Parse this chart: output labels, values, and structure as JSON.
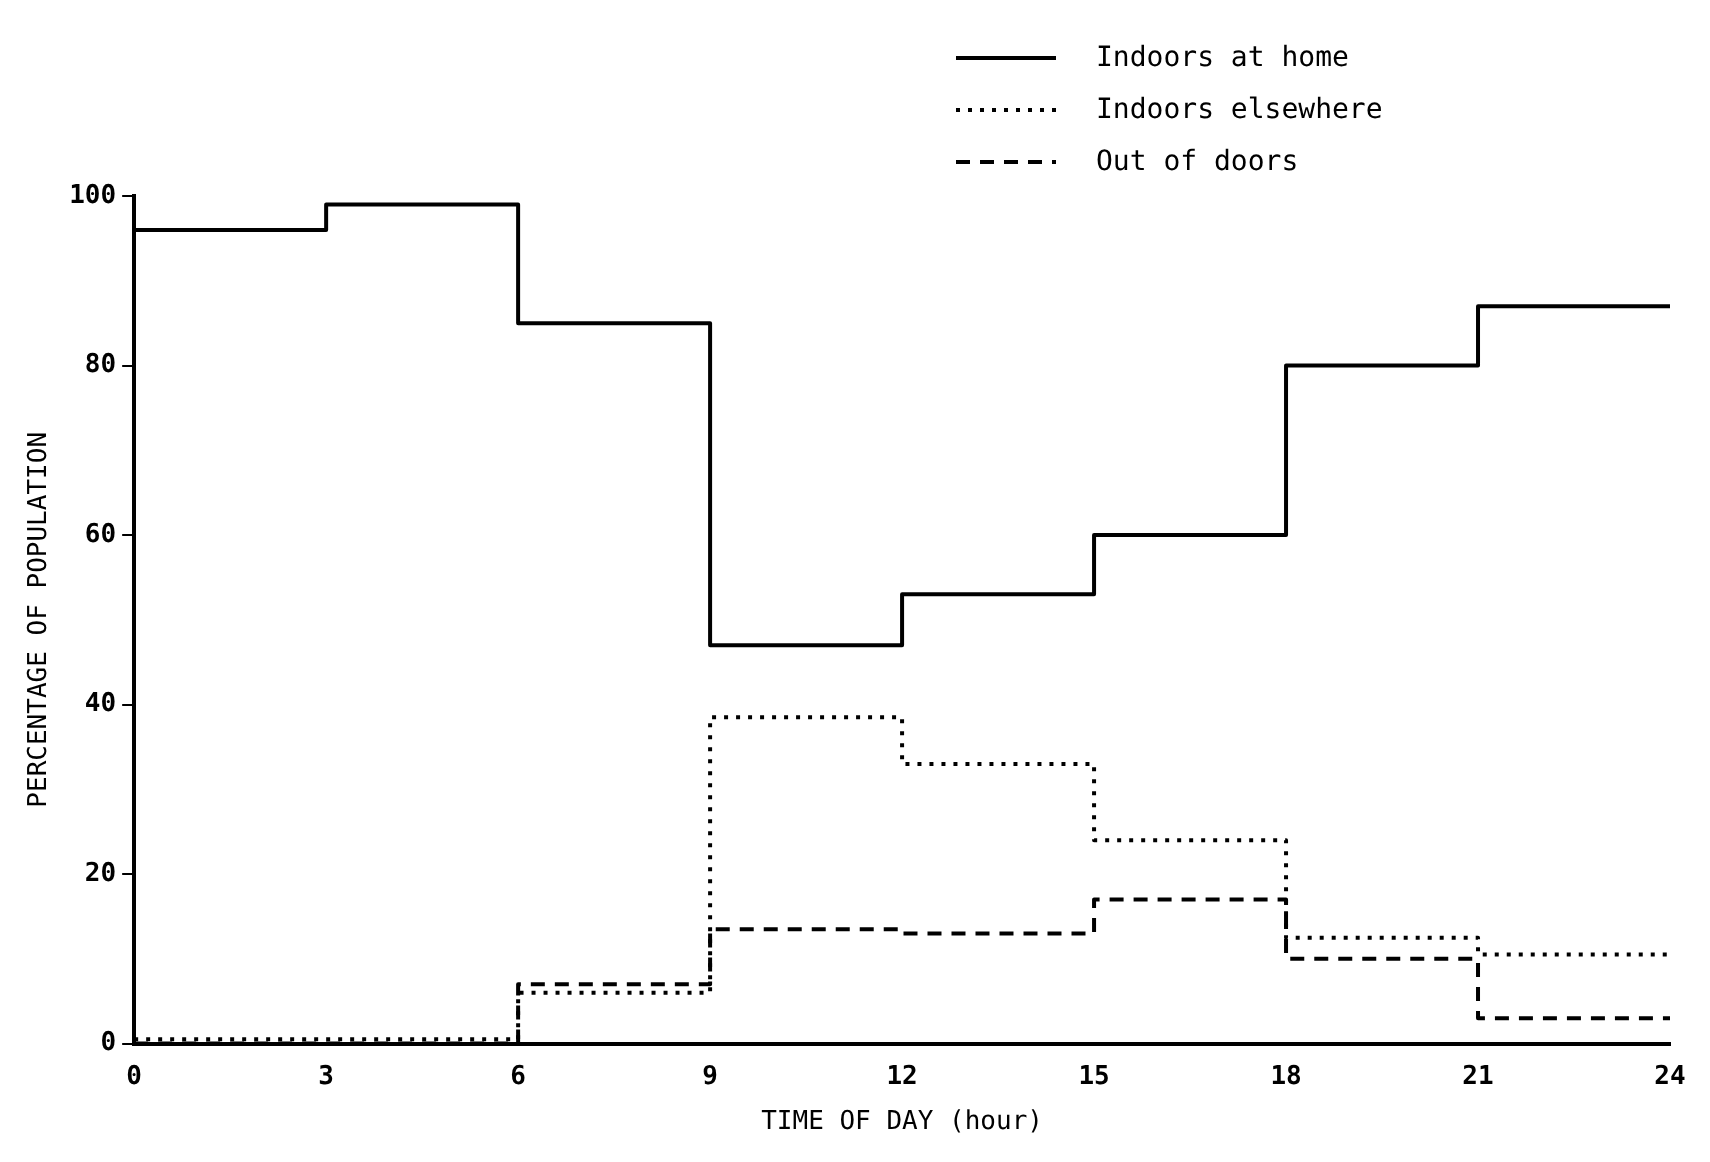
{
  "chart_data": {
    "type": "step",
    "xlabel": "TIME OF DAY (hour)",
    "ylabel": "PERCENTAGE OF POPULATION",
    "x": [
      0,
      3,
      6,
      9,
      12,
      15,
      18,
      21,
      24
    ],
    "xlim": [
      0,
      24
    ],
    "xticks": [
      0,
      3,
      6,
      9,
      12,
      15,
      18,
      21,
      24
    ],
    "ylim": [
      0,
      100
    ],
    "yticks": [
      0,
      20,
      40,
      60,
      80,
      100
    ],
    "grid": false,
    "legend": "top",
    "series": [
      {
        "name": "Indoors at home",
        "color": "#000000",
        "line_style": "solid",
        "values": [
          96,
          99,
          85,
          47,
          53,
          60,
          80,
          87,
          87
        ]
      },
      {
        "name": "Indoors elsewhere",
        "color": "#000000",
        "line_style": "dotted",
        "values": [
          0.5,
          0.5,
          6,
          38.5,
          33,
          24,
          12.5,
          10.5,
          10.5
        ]
      },
      {
        "name": "Out of doors",
        "color": "#000000",
        "line_style": "dashed",
        "values": [
          0,
          0,
          7,
          13.5,
          13,
          17,
          10,
          3,
          3
        ]
      }
    ]
  }
}
